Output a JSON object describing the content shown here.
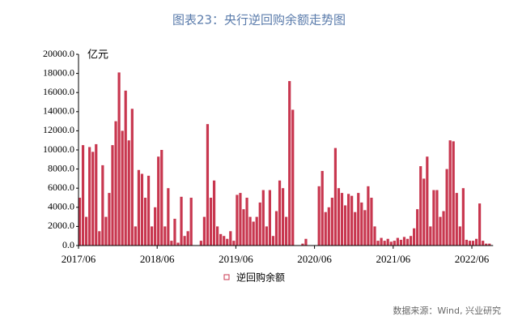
{
  "chart_data": {
    "type": "bar",
    "title": "图表23：央行逆回购余额走势图",
    "y_label": "亿元",
    "source": "数据来源：Wind, 兴业研究",
    "series": [
      {
        "name": "逆回购余额",
        "color": "#c8374f",
        "values": [
          5000,
          10500,
          3000,
          10300,
          9800,
          10600,
          1500,
          8400,
          3000,
          5500,
          10500,
          13000,
          18100,
          12000,
          16200,
          11000,
          14300,
          2000,
          7900,
          7500,
          5000,
          7300,
          2000,
          4000,
          9300,
          10000,
          2000,
          6000,
          500,
          2800,
          300,
          5100,
          1000,
          1500,
          5000,
          0,
          0,
          500,
          3000,
          12700,
          5000,
          6800,
          2000,
          1200,
          1000,
          700,
          1500,
          500,
          5300,
          5500,
          3800,
          5000,
          3000,
          2500,
          3000,
          4500,
          5800,
          2000,
          5800,
          1000,
          3600,
          6800,
          6000,
          3000,
          17200,
          14200,
          0,
          0,
          200,
          700,
          0,
          0,
          0,
          6200,
          7800,
          3500,
          4000,
          5000,
          10200,
          6000,
          5500,
          4200,
          5400,
          5200,
          3500,
          5500,
          4500,
          3700,
          6200,
          5000,
          2000,
          500,
          800,
          500,
          700,
          400,
          500,
          800,
          600,
          900,
          700,
          1000,
          1800,
          3800,
          8300,
          7000,
          9300,
          2000,
          5800,
          5800,
          3000,
          3600,
          8000,
          11000,
          10900,
          5500,
          2000,
          6000,
          600,
          500,
          500,
          700,
          4400,
          500,
          200,
          200
        ]
      }
    ],
    "categories": [
      "2017/06",
      null,
      null,
      null,
      null,
      null,
      null,
      null,
      null,
      null,
      null,
      null,
      null,
      null,
      null,
      null,
      null,
      null,
      null,
      null,
      null,
      null,
      null,
      null,
      "2018/06",
      null,
      null,
      null,
      null,
      null,
      null,
      null,
      null,
      null,
      null,
      null,
      null,
      null,
      null,
      null,
      null,
      null,
      null,
      null,
      null,
      null,
      null,
      null,
      "2019/06",
      null,
      null,
      null,
      null,
      null,
      null,
      null,
      null,
      null,
      null,
      null,
      null,
      null,
      null,
      null,
      null,
      null,
      null,
      null,
      null,
      null,
      null,
      null,
      "2020/06",
      null,
      null,
      null,
      null,
      null,
      null,
      null,
      null,
      null,
      null,
      null,
      null,
      null,
      null,
      null,
      null,
      null,
      null,
      null,
      null,
      null,
      null,
      null,
      "2021/06",
      null,
      null,
      null,
      null,
      null,
      null,
      null,
      null,
      null,
      null,
      null,
      null,
      null,
      null,
      null,
      null,
      null,
      null,
      null,
      null,
      null,
      null,
      null,
      "2022/06",
      null,
      null,
      null,
      null,
      null
    ],
    "ylim": [
      0,
      20000
    ],
    "yticks": [
      {
        "value": 0,
        "label": "0.0"
      },
      {
        "value": 2000,
        "label": "2000.0"
      },
      {
        "value": 4000,
        "label": "4000.0"
      },
      {
        "value": 6000,
        "label": "6000.0"
      },
      {
        "value": 8000,
        "label": "8000.0"
      },
      {
        "value": 10000,
        "label": "10000.0"
      },
      {
        "value": 12000,
        "label": "12000.0"
      },
      {
        "value": 14000,
        "label": "14000.0"
      },
      {
        "value": 16000,
        "label": "16000.0"
      },
      {
        "value": 18000,
        "label": "18000.0"
      },
      {
        "value": 20000,
        "label": "20000.0"
      }
    ]
  }
}
